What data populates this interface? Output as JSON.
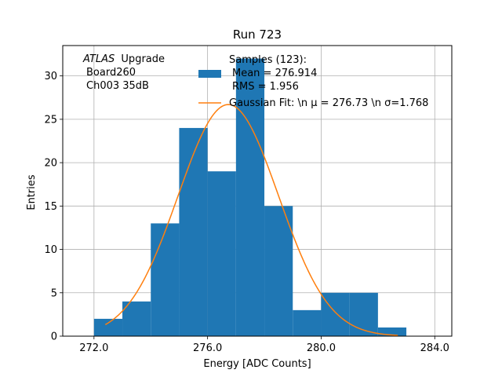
{
  "chart_data": {
    "type": "bar",
    "title": "Run 723",
    "xlabel": "Energy [ADC Counts]",
    "ylabel": "Entries",
    "xlim": [
      270.9,
      284.6
    ],
    "ylim": [
      0,
      33.5
    ],
    "xticks": [
      272.0,
      276.0,
      280.0,
      284.0
    ],
    "xtick_labels": [
      "272.0",
      "276.0",
      "280.0",
      "284.0"
    ],
    "yticks": [
      0,
      5,
      10,
      15,
      20,
      25,
      30
    ],
    "ytick_labels": [
      "0",
      "5",
      "10",
      "15",
      "20",
      "25",
      "30"
    ],
    "grid": true,
    "bar_color": "#1f77b4",
    "fit_color": "#ff7f0e",
    "histogram": {
      "bin_edges": [
        272.0,
        273.0,
        274.0,
        275.0,
        276.0,
        277.0,
        278.0,
        279.0,
        280.0,
        281.0,
        282.0,
        283.0
      ],
      "counts": [
        2,
        4,
        13,
        24,
        19,
        32,
        15,
        3,
        5,
        5,
        1
      ]
    },
    "gaussian_fit": {
      "mu": 276.73,
      "sigma": 1.768,
      "amplitude": 26.7,
      "x_range": [
        272.4,
        282.7
      ]
    },
    "annotation_lines": [
      "Upgrade",
      "Board260",
      "Ch003 35dB"
    ],
    "annotation_italic": "ATLAS",
    "legend": {
      "position": "top-center",
      "entries": [
        {
          "kind": "bar",
          "lines": [
            "Samples (123):",
            "Mean = 276.914",
            "RMS = 1.956"
          ]
        },
        {
          "kind": "line",
          "lines": [
            "Gaussian Fit: \\n μ = 276.73 \\n σ=1.768"
          ]
        }
      ]
    }
  }
}
